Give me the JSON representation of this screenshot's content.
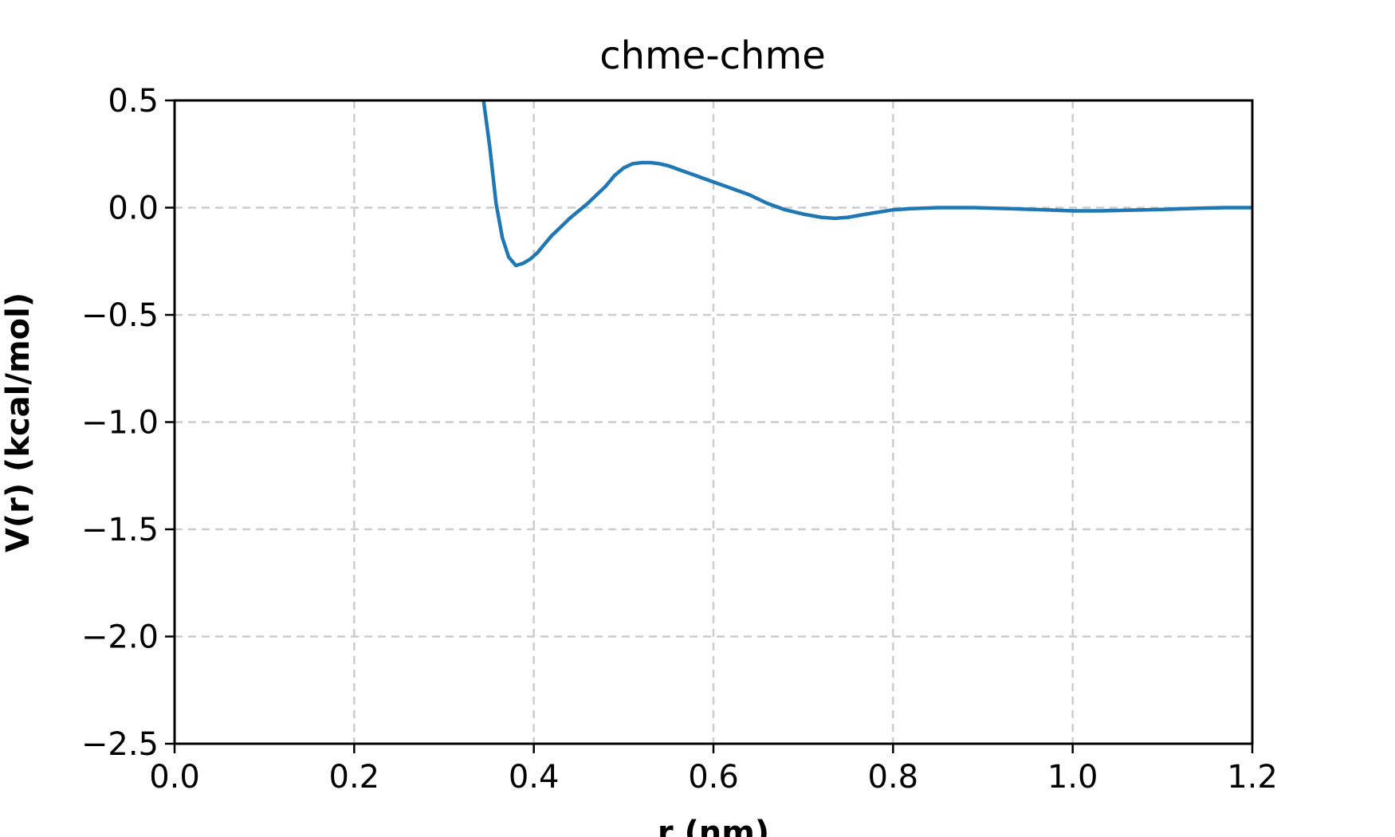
{
  "chart_data": {
    "type": "line",
    "title": "chme-chme",
    "xlabel": "r (nm)",
    "ylabel": "V(r) (kcal/mol)",
    "xlim": [
      0.0,
      1.2
    ],
    "ylim": [
      -2.5,
      0.5
    ],
    "xticks": [
      "0.0",
      "0.2",
      "0.4",
      "0.6",
      "0.8",
      "1.0",
      "1.2"
    ],
    "yticks": [
      "0.5",
      "0.0",
      "−0.5",
      "−1.0",
      "−1.5",
      "−2.0",
      "−2.5"
    ],
    "grid": true,
    "grid_style": "dashed",
    "line_color": "#1f77b4",
    "series": [
      {
        "x": [
          0.344,
          0.351,
          0.358,
          0.365,
          0.372,
          0.38,
          0.388,
          0.396,
          0.404,
          0.412,
          0.42,
          0.43,
          0.44,
          0.45,
          0.46,
          0.47,
          0.48,
          0.49,
          0.5,
          0.51,
          0.52,
          0.53,
          0.54,
          0.55,
          0.56,
          0.57,
          0.58,
          0.59,
          0.6,
          0.62,
          0.64,
          0.66,
          0.68,
          0.7,
          0.72,
          0.735,
          0.75,
          0.77,
          0.8,
          0.82,
          0.85,
          0.89,
          0.93,
          0.97,
          1.0,
          1.03,
          1.06,
          1.1,
          1.14,
          1.17,
          1.2
        ],
        "y": [
          0.5,
          0.28,
          0.02,
          -0.14,
          -0.23,
          -0.27,
          -0.26,
          -0.24,
          -0.21,
          -0.17,
          -0.13,
          -0.09,
          -0.05,
          -0.015,
          0.02,
          0.06,
          0.1,
          0.15,
          0.185,
          0.205,
          0.21,
          0.21,
          0.205,
          0.195,
          0.18,
          0.165,
          0.15,
          0.135,
          0.12,
          0.09,
          0.06,
          0.02,
          -0.01,
          -0.03,
          -0.045,
          -0.05,
          -0.045,
          -0.03,
          -0.01,
          -0.005,
          0.0,
          0.0,
          -0.005,
          -0.01,
          -0.015,
          -0.015,
          -0.012,
          -0.008,
          -0.003,
          0.0,
          0.0
        ]
      }
    ]
  }
}
